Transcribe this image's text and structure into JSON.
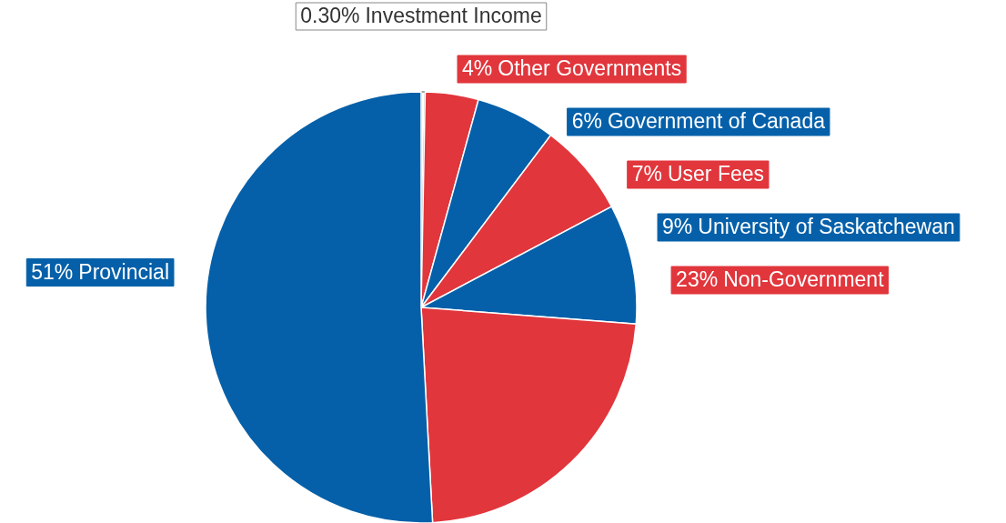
{
  "chart_data": {
    "type": "pie",
    "categories": [
      "Investment Income",
      "Other Governments",
      "Government of Canada",
      "User Fees",
      "University of Saskatchewan",
      "Non-Government",
      "Provincial"
    ],
    "values": [
      0.3,
      4,
      6,
      7,
      9,
      23,
      51
    ],
    "colors": [
      "#ffffff",
      "#e1363c",
      "#0560a9",
      "#e1363c",
      "#0560a9",
      "#e1363c",
      "#0560a9"
    ],
    "value_labels": [
      "0.30%",
      "4%",
      "6%",
      "7%",
      "9%",
      "23%",
      "51%"
    ]
  }
}
